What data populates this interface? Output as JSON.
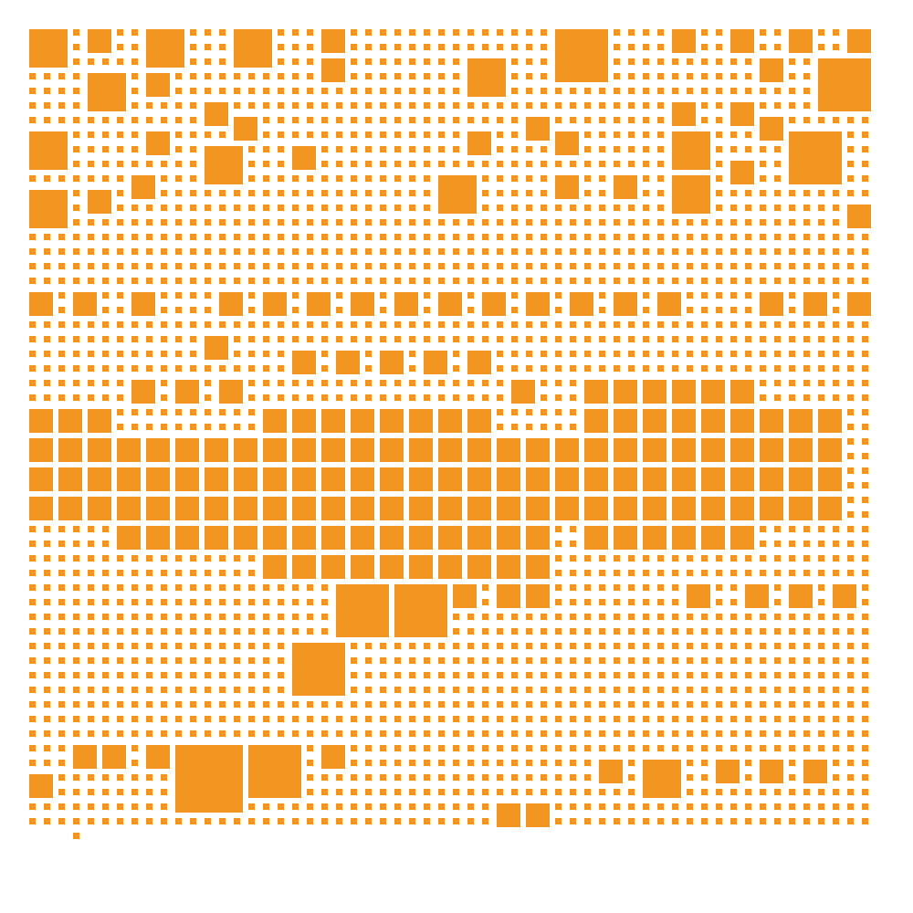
{
  "colors": {
    "tile": "#F39621",
    "background": "#FFFFFF"
  }
}
